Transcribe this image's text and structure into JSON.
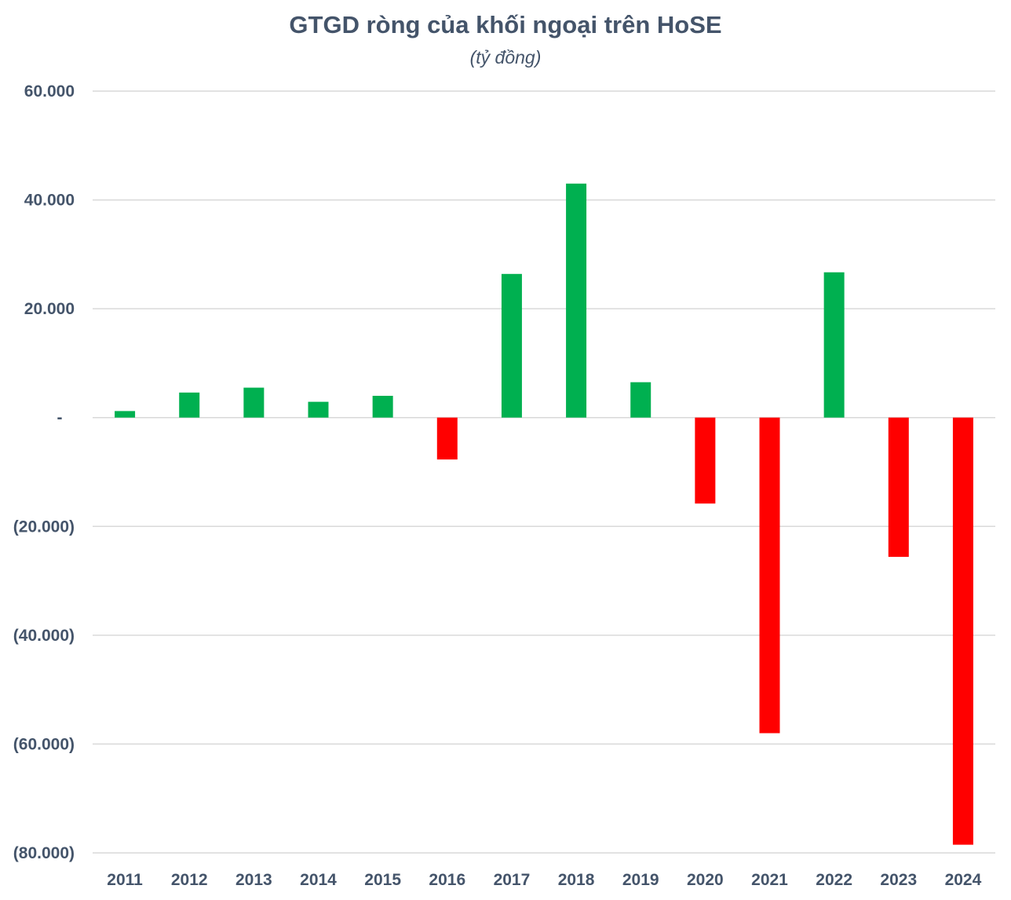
{
  "chart_data": {
    "type": "bar",
    "title": "GTGD ròng của khối ngoại trên HoSE",
    "subtitle": "(tỷ đồng)",
    "categories": [
      "2011",
      "2012",
      "2013",
      "2014",
      "2015",
      "2016",
      "2017",
      "2018",
      "2019",
      "2020",
      "2021",
      "2022",
      "2023",
      "2024"
    ],
    "values": [
      1200,
      4600,
      5500,
      2900,
      4000,
      -7700,
      26400,
      43000,
      6500,
      -15800,
      -58000,
      26700,
      -25600,
      -78500
    ],
    "ylim": [
      -80000,
      60000
    ],
    "yticks": [
      60000,
      40000,
      20000,
      0,
      -20000,
      -40000,
      -60000,
      -80000
    ],
    "ytick_labels": [
      "60.000",
      "40.000",
      "20.000",
      "-",
      "(20.000)",
      "(40.000)",
      "(60.000)",
      "(80.000)"
    ],
    "grid": true,
    "colors": {
      "positive": "#00b050",
      "negative": "#ff0000",
      "grid": "#d9d9d9",
      "text": "#44546a"
    }
  }
}
